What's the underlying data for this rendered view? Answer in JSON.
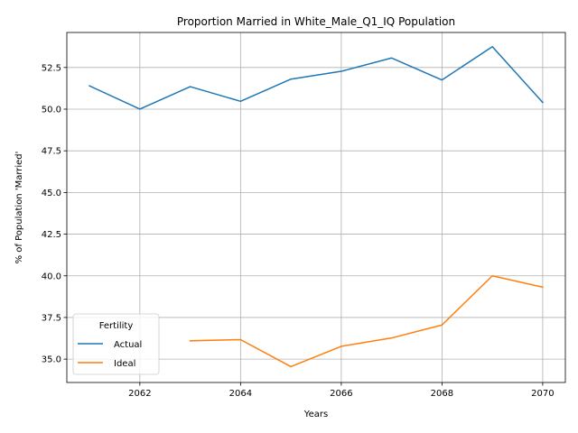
{
  "chart_data": {
    "type": "line",
    "title": "Proportion Married in White_Male_Q1_IQ Population",
    "xlabel": "Years",
    "ylabel": "% of Population 'Married'",
    "xlim": [
      2060.55,
      2070.45
    ],
    "ylim": [
      33.6,
      54.6
    ],
    "xticks": [
      2062,
      2064,
      2066,
      2068,
      2070
    ],
    "yticks": [
      35.0,
      37.5,
      40.0,
      42.5,
      45.0,
      47.5,
      50.0,
      52.5
    ],
    "grid": true,
    "legend": {
      "title": "Fertility",
      "placement": "lower-left"
    },
    "series": [
      {
        "name": "Actual",
        "color": "#1f77b4",
        "x": [
          2061,
          2062,
          2063,
          2064,
          2065,
          2066,
          2067,
          2068,
          2069,
          2070
        ],
        "y": [
          51.4,
          50.0,
          51.35,
          50.47,
          51.8,
          52.27,
          53.07,
          51.75,
          53.75,
          50.4
        ]
      },
      {
        "name": "Ideal",
        "color": "#ff7f0e",
        "x": [
          2063,
          2064,
          2065,
          2066,
          2067,
          2068,
          2069,
          2070
        ],
        "y": [
          36.1,
          36.17,
          34.55,
          35.77,
          36.27,
          37.05,
          40.0,
          39.32
        ]
      }
    ]
  }
}
